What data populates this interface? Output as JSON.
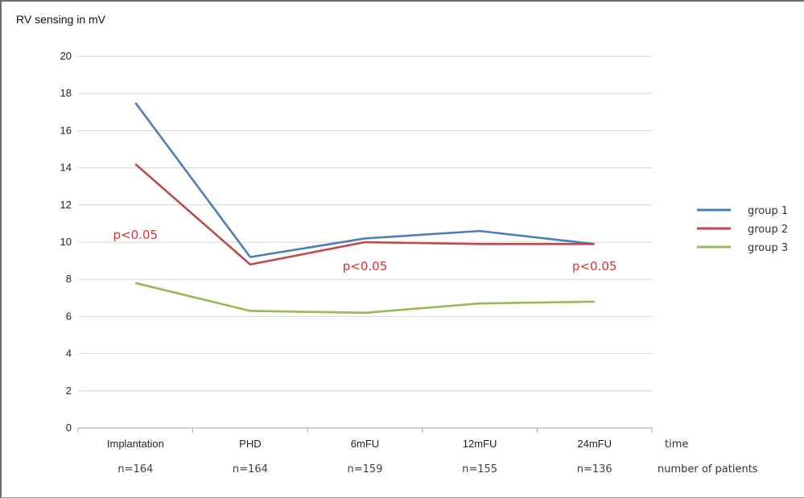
{
  "chart_data": {
    "type": "line",
    "ylabel": "RV sensing in mV",
    "xlabel": "time",
    "sample_size_label": "number of patients",
    "ylim": [
      0,
      20
    ],
    "yticks": [
      0,
      2,
      4,
      6,
      8,
      10,
      12,
      14,
      16,
      18,
      20
    ],
    "grid": true,
    "legend_position": "right",
    "categories": [
      "Implantation",
      "PHD",
      "6mFU",
      "12mFU",
      "24mFU"
    ],
    "sample_sizes": [
      "n=164",
      "n=164",
      "n=159",
      "n=155",
      "n=136"
    ],
    "series": [
      {
        "name": "group 1",
        "color": "#4a7ebb",
        "values": [
          17.5,
          9.2,
          10.2,
          10.6,
          9.9
        ]
      },
      {
        "name": "group 2",
        "color": "#be4b48",
        "values": [
          14.2,
          8.8,
          10.0,
          9.9,
          9.9
        ]
      },
      {
        "name": "group 3",
        "color": "#98b954",
        "values": [
          7.8,
          6.3,
          6.2,
          6.7,
          6.8
        ]
      }
    ],
    "annotations": [
      {
        "text": "p<0.05",
        "category_index": 0,
        "y": 10.4
      },
      {
        "text": "p<0.05",
        "category_index": 2,
        "y": 8.7
      },
      {
        "text": "p<0.05",
        "category_index": 4,
        "y": 8.7
      }
    ]
  }
}
